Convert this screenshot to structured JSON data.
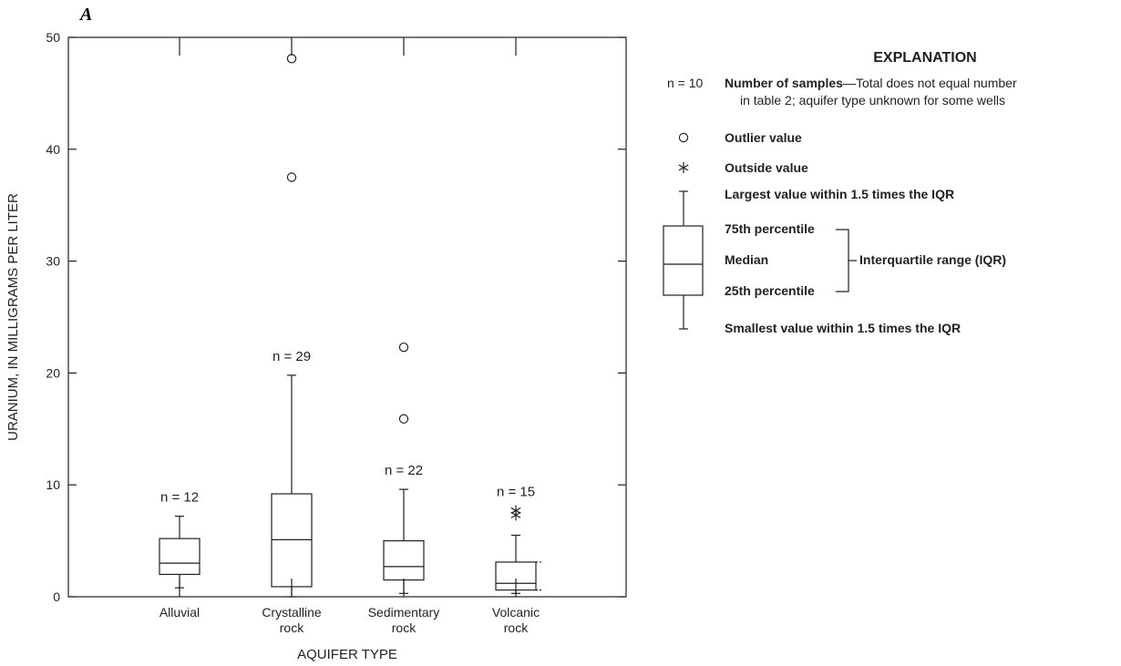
{
  "panel_label": "A",
  "chart_data": {
    "type": "boxplot",
    "ylabel": "URANIUM, IN MILLIGRAMS PER LITER",
    "xlabel": "AQUIFER TYPE",
    "ylim": [
      0,
      50
    ],
    "yticks": [
      0,
      10,
      20,
      30,
      40,
      50
    ],
    "categories": [
      {
        "lines": [
          "Alluvial"
        ]
      },
      {
        "lines": [
          "Crystalline",
          "rock"
        ]
      },
      {
        "lines": [
          "Sedimentary",
          "rock"
        ]
      },
      {
        "lines": [
          "Volcanic",
          "rock"
        ]
      }
    ],
    "series": [
      {
        "n_label": "n = 12",
        "whisker_low": 0.8,
        "q1": 2.0,
        "median": 3.0,
        "q3": 5.2,
        "whisker_high": 7.2,
        "outliers": [],
        "outside": [],
        "p10_p90": null
      },
      {
        "n_label": "n = 29",
        "whisker_low": 0.0,
        "q1": 0.9,
        "median": 5.1,
        "q3": 9.2,
        "whisker_high": 19.8,
        "outliers": [
          37.5,
          48.1
        ],
        "outside": [],
        "p10_p90": null
      },
      {
        "n_label": "n = 22",
        "whisker_low": 0.3,
        "q1": 1.5,
        "median": 2.7,
        "q3": 5.0,
        "whisker_high": 9.6,
        "outliers": [
          15.9,
          22.3
        ],
        "outside": [],
        "p10_p90": null
      },
      {
        "n_label": "n = 15",
        "whisker_low": 0.3,
        "q1": 0.6,
        "median": 1.2,
        "q3": 3.1,
        "whisker_high": 5.5,
        "outliers": [],
        "outside": [
          7.3,
          7.7
        ],
        "p10_p90": [
          0.6,
          3.1
        ]
      }
    ]
  },
  "explanation": {
    "title": "EXPLANATION",
    "n_example": "n = 10",
    "n_bold": "Number of samples",
    "n_text_line1": "—Total does not equal number",
    "n_text_line2": "in table 2; aquifer type unknown for some wells",
    "outlier_label": "Outlier value",
    "outside_label": "Outside value",
    "largest_label": "Largest value within 1.5 times the IQR",
    "p75_label": "75th percentile",
    "median_label": "Median",
    "p25_label": "25th percentile",
    "iqr_label": "Interquartile range (IQR)",
    "smallest_label": "Smallest value within 1.5 times the IQR"
  }
}
